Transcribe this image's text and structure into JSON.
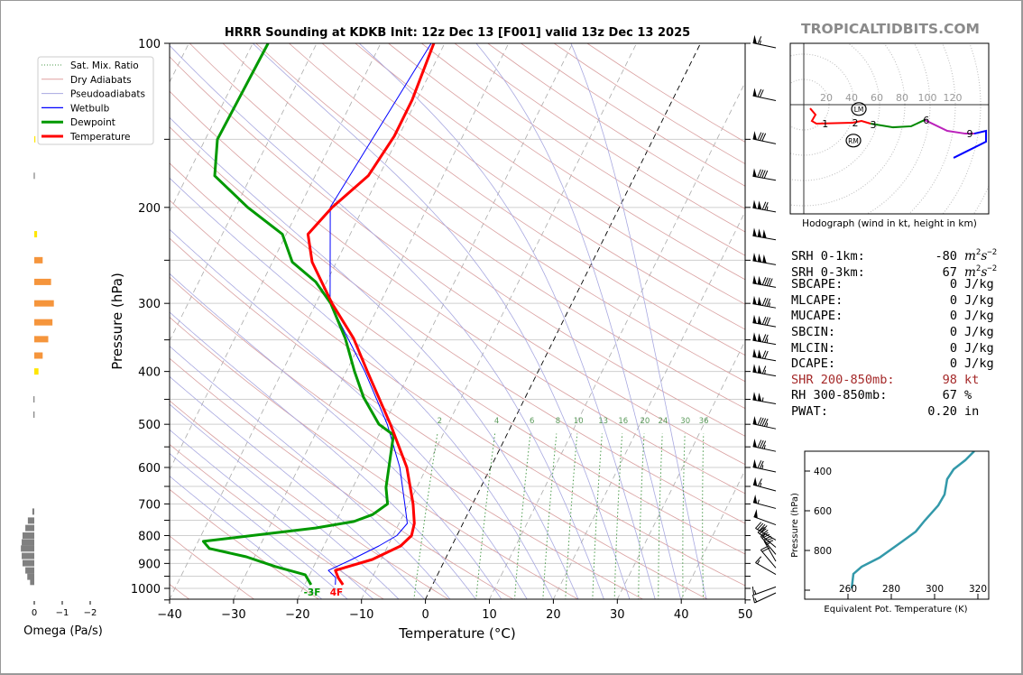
{
  "watermark": "TROPICALTIDBITS.COM",
  "stats": {
    "rows": [
      {
        "label": "SRH 0-1km:",
        "value": "-80",
        "unit": "m2s-2",
        "color": "#000000"
      },
      {
        "label": "SRH 0-3km:",
        "value": "67",
        "unit": "m2s-2",
        "color": "#000000"
      },
      {
        "label": "SBCAPE:",
        "value": "0",
        "unit": "J/kg",
        "color": "#000000"
      },
      {
        "label": "MLCAPE:",
        "value": "0",
        "unit": "J/kg",
        "color": "#000000"
      },
      {
        "label": "MUCAPE:",
        "value": "0",
        "unit": "J/kg",
        "color": "#000000"
      },
      {
        "label": "SBCIN:",
        "value": "0",
        "unit": "J/kg",
        "color": "#000000"
      },
      {
        "label": "MLCIN:",
        "value": "0",
        "unit": "J/kg",
        "color": "#000000"
      },
      {
        "label": "DCAPE:",
        "value": "0",
        "unit": "J/kg",
        "color": "#000000"
      },
      {
        "label": "SHR 200-850mb:",
        "value": "98",
        "unit": "kt",
        "color": "#a52a2a"
      },
      {
        "label": "RH 300-850mb:",
        "value": "67",
        "unit": "%",
        "color": "#000000"
      },
      {
        "label": "PWAT:",
        "value": "0.20",
        "unit": "in",
        "color": "#000000"
      }
    ]
  },
  "chart_data": [
    {
      "id": "skewt",
      "type": "line",
      "title": "HRRR Sounding at KDKB Init: 12z Dec 13 [F001] valid 13z Dec 13 2025",
      "xlabel": "Temperature (°C)",
      "ylabel": "Pressure (hPa)",
      "xlim": [
        -40,
        50
      ],
      "ylim": [
        1050,
        100
      ],
      "xticks": [
        "−40",
        "−30",
        "−20",
        "−10",
        "0",
        "10",
        "20",
        "30",
        "40",
        "50"
      ],
      "xtick_values": [
        -40,
        -30,
        -20,
        -10,
        0,
        10,
        20,
        30,
        40,
        50
      ],
      "yticks": [
        "100",
        "200",
        "300",
        "400",
        "500",
        "600",
        "700",
        "800",
        "900",
        "1000"
      ],
      "ytick_values": [
        100,
        200,
        300,
        400,
        500,
        600,
        700,
        800,
        900,
        1000
      ],
      "legend": {
        "placement": "top-left",
        "entries": [
          "Sat. Mix. Ratio",
          "Dry Adiabats",
          "Pseudoadiabats",
          "Wetbulb",
          "Dewpoint",
          "Temperature"
        ]
      },
      "colors": {
        "temperature": "#ff0000",
        "dewpoint": "#009900",
        "wetbulb": "#0000ff",
        "dry": "#d9a0a0",
        "moist": "#a8a8e0",
        "mixing": "#4a9a4a"
      },
      "mixing_ratio_labels": [
        "2",
        "4",
        "6",
        "8",
        "10",
        "13",
        "16",
        "20",
        "24",
        "30",
        "36"
      ],
      "mixing_ratio_values": [
        2,
        4,
        6,
        8,
        10,
        13,
        16,
        20,
        24,
        30,
        36
      ],
      "surface_labels": {
        "dewpoint": "-3F",
        "temperature": "4F"
      },
      "series": [
        {
          "name": "Temperature",
          "p": [
            100,
            127,
            148,
            175,
            200,
            224,
            252,
            300,
            348,
            400,
            500,
            600,
            700,
            760,
            800,
            836,
            885,
            927,
            956,
            985
          ],
          "t": [
            -41.7,
            -40.7,
            -40.7,
            -41.7,
            -44.9,
            -46.6,
            -43.8,
            -37.5,
            -31.4,
            -26.7,
            -19.0,
            -13.1,
            -9.3,
            -7.6,
            -7.1,
            -8.0,
            -11.4,
            -16.3,
            -15.3,
            -14.0
          ]
        },
        {
          "name": "Dewpoint",
          "p": [
            100,
            150,
            175,
            200,
            224,
            252,
            274,
            300,
            348,
            400,
            446,
            500,
            523,
            653,
            700,
            732,
            754,
            775,
            820,
            845,
            875,
            912,
            944,
            985
          ],
          "t": [
            -67.6,
            -68.1,
            -65.7,
            -58.1,
            -50.6,
            -46.9,
            -41.7,
            -37.7,
            -32.7,
            -28.7,
            -25.3,
            -20.8,
            -17.7,
            -14.8,
            -13.3,
            -14.8,
            -17.2,
            -22.7,
            -39.2,
            -37.7,
            -31.3,
            -26.0,
            -20.7,
            -19.0
          ]
        },
        {
          "name": "Wetbulb",
          "p": [
            100,
            200,
            300,
            400,
            500,
            600,
            700,
            760,
            800,
            836,
            885,
            927,
            956,
            985
          ],
          "t": [
            -42.1,
            -45.2,
            -37.8,
            -27.1,
            -19.5,
            -14.2,
            -10.6,
            -8.7,
            -9.4,
            -11.4,
            -14.6,
            -17.4,
            -15.7,
            -15.2
          ]
        }
      ],
      "wind_barbs": [
        {
          "p": 100,
          "kt": 65,
          "dir": 282
        },
        {
          "p": 125,
          "kt": 70,
          "dir": 282
        },
        {
          "p": 150,
          "kt": 80,
          "dir": 282
        },
        {
          "p": 175,
          "kt": 90,
          "dir": 280
        },
        {
          "p": 200,
          "kt": 125,
          "dir": 280
        },
        {
          "p": 225,
          "kt": 150,
          "dir": 280
        },
        {
          "p": 250,
          "kt": 150,
          "dir": 280
        },
        {
          "p": 275,
          "kt": 140,
          "dir": 280
        },
        {
          "p": 300,
          "kt": 135,
          "dir": 280
        },
        {
          "p": 325,
          "kt": 130,
          "dir": 280
        },
        {
          "p": 350,
          "kt": 125,
          "dir": 280
        },
        {
          "p": 375,
          "kt": 120,
          "dir": 280
        },
        {
          "p": 400,
          "kt": 115,
          "dir": 280
        },
        {
          "p": 450,
          "kt": 105,
          "dir": 280
        },
        {
          "p": 500,
          "kt": 95,
          "dir": 282
        },
        {
          "p": 550,
          "kt": 85,
          "dir": 282
        },
        {
          "p": 600,
          "kt": 75,
          "dir": 282
        },
        {
          "p": 650,
          "kt": 65,
          "dir": 285
        },
        {
          "p": 700,
          "kt": 55,
          "dir": 285
        },
        {
          "p": 750,
          "kt": 50,
          "dir": 290
        },
        {
          "p": 800,
          "kt": 40,
          "dir": 300
        },
        {
          "p": 825,
          "kt": 35,
          "dir": 310
        },
        {
          "p": 850,
          "kt": 30,
          "dir": 320
        },
        {
          "p": 875,
          "kt": 25,
          "dir": 330
        },
        {
          "p": 900,
          "kt": 20,
          "dir": 320
        },
        {
          "p": 925,
          "kt": 15,
          "dir": 300
        },
        {
          "p": 975,
          "kt": 15,
          "dir": 250
        },
        {
          "p": 1000,
          "kt": 15,
          "dir": 245
        }
      ]
    },
    {
      "id": "hodograph",
      "type": "line",
      "title": "Hodograph (wind in kt, height in km)",
      "ring_labels": [
        "20",
        "40",
        "60",
        "80",
        "100",
        "120"
      ],
      "ring_values": [
        20,
        40,
        60,
        80,
        100,
        120,
        140,
        160
      ],
      "segments": [
        {
          "color": "#ff0000",
          "u": [
            5,
            9.3,
            6.4,
            10,
            38.6,
            45.7,
            52.9
          ],
          "v": [
            -2.9,
            -7.9,
            -12.9,
            -15,
            -14.3,
            -12.9,
            -15
          ]
        },
        {
          "color": "#008800",
          "u": [
            52.9,
            70.7,
            85,
            95.7
          ],
          "v": [
            -15,
            -17.9,
            -17.1,
            -12.1
          ]
        },
        {
          "color": "#bb22bb",
          "u": [
            95.7,
            113.6,
            127.9,
            135
          ],
          "v": [
            -12.1,
            -20.7,
            -22.9,
            -22.9
          ]
        },
        {
          "color": "#0000ff",
          "u": [
            135,
            144.3,
            144.3,
            118.6
          ],
          "v": [
            -22.9,
            -20.7,
            -29.3,
            -42.1
          ]
        }
      ],
      "height_labels": [
        {
          "text": "1",
          "u": 17,
          "v": -15
        },
        {
          "text": "2",
          "u": 40.7,
          "v": -14.3
        },
        {
          "text": "3",
          "u": 55,
          "v": -15.7
        },
        {
          "text": "6",
          "u": 97,
          "v": -12.1
        },
        {
          "text": "9",
          "u": 131.4,
          "v": -22.9
        }
      ],
      "storm_motion": [
        {
          "text": "LM",
          "u": 43.6,
          "v": -2
        },
        {
          "text": "RM",
          "u": 39.3,
          "v": -27
        }
      ]
    },
    {
      "id": "theta-e",
      "type": "line",
      "xlabel": "Equivalent Pot. Temperature (K)",
      "ylabel": "Pressure (hPa)",
      "xticks": [
        "260",
        "280",
        "300",
        "320"
      ],
      "xtick_values": [
        260,
        280,
        300,
        320
      ],
      "yticks": [
        "400",
        "600",
        "800"
      ],
      "ytick_values": [
        400,
        600,
        800
      ],
      "color": "#3399aa",
      "theta_e": [
        261.7,
        262.5,
        266.3,
        274.6,
        285,
        291.3,
        295.4,
        301.7,
        304.6,
        305.8,
        308.8,
        314.2,
        318.3
      ],
      "p": [
        991,
        918,
        882,
        836,
        755,
        705,
        650,
        573,
        518,
        441,
        391,
        345,
        300
      ]
    },
    {
      "id": "omega",
      "type": "bar",
      "xlabel": "Omega (Pa/s)",
      "xticks": [
        "0",
        "−1",
        "−2"
      ],
      "xtick_values": [
        0,
        -1,
        -2
      ],
      "p": [
        150,
        175,
        224,
        250,
        274,
        300,
        325,
        349,
        374,
        400,
        450,
        480,
        723,
        751,
        775,
        800,
        823,
        845,
        872,
        899,
        927,
        952,
        973
      ],
      "omega": [
        -0.02,
        0.02,
        -0.1,
        -0.3,
        -0.6,
        -0.7,
        -0.65,
        -0.5,
        -0.3,
        -0.15,
        0.03,
        0.03,
        0.07,
        0.23,
        0.32,
        0.42,
        0.45,
        0.48,
        0.45,
        0.42,
        0.32,
        0.25,
        0.15
      ]
    }
  ]
}
